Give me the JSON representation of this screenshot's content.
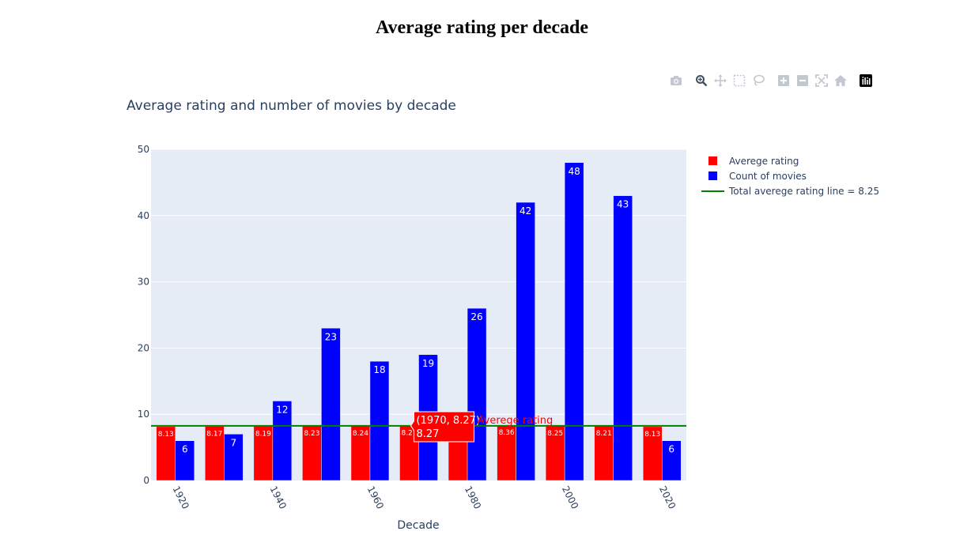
{
  "page": {
    "title": "Average rating per decade"
  },
  "modebar": {
    "buttons": [
      {
        "name": "camera-icon",
        "label": "Download plot as png"
      },
      {
        "name": "zoom-icon",
        "label": "Zoom"
      },
      {
        "name": "pan-icon",
        "label": "Pan"
      },
      {
        "name": "box-select-icon",
        "label": "Box Select"
      },
      {
        "name": "lasso-select-icon",
        "label": "Lasso Select"
      },
      {
        "name": "zoom-in-icon",
        "label": "Zoom in"
      },
      {
        "name": "zoom-out-icon",
        "label": "Zoom out"
      },
      {
        "name": "autoscale-icon",
        "label": "Autoscale"
      },
      {
        "name": "reset-axes-icon",
        "label": "Reset axes"
      },
      {
        "name": "plotly-logo-icon",
        "label": "Produced with Plotly"
      }
    ]
  },
  "colors": {
    "plot_bg": "#e5ecf6",
    "rating": "#ff0000",
    "count": "#0000ff",
    "total_line": "#008000",
    "axis_text": "#2a3f5f"
  },
  "chart_data": {
    "type": "bar",
    "title": "Average rating and number of movies by decade",
    "xlabel": "Decade",
    "ylabel": "",
    "ylim": [
      0,
      50
    ],
    "y_ticks": [
      0,
      10,
      20,
      30,
      40,
      50
    ],
    "x_ticks": [
      1920,
      1940,
      1960,
      1980,
      2000,
      2020
    ],
    "categories": [
      1920,
      1930,
      1940,
      1950,
      1960,
      1970,
      1980,
      1990,
      2000,
      2010,
      2020
    ],
    "series": [
      {
        "name": "Averege rating",
        "values": [
          8.13,
          8.17,
          8.19,
          8.23,
          8.24,
          8.27,
          8.26,
          8.36,
          8.25,
          8.21,
          8.13
        ],
        "labels": [
          "8.13",
          "8.17",
          "8.19",
          "8.23",
          "8.24",
          "8.27",
          "",
          "8.36",
          "8.25",
          "8.21",
          "8.13"
        ]
      },
      {
        "name": "Count of movies",
        "values": [
          6,
          7,
          12,
          23,
          18,
          19,
          26,
          42,
          48,
          43,
          6
        ],
        "labels": [
          "6",
          "7",
          "12",
          "23",
          "18",
          "19",
          "26",
          "42",
          "48",
          "43",
          "6"
        ]
      }
    ],
    "hline": {
      "name": "Total averege rating line = 8.25",
      "value": 8.25
    },
    "legend": {
      "position": "top-right"
    },
    "grid": true,
    "hover": {
      "line1": "(1970, 8.27)",
      "line2": "8.27",
      "trace": "Averege rating",
      "category": 1970,
      "value": 8.27
    }
  }
}
